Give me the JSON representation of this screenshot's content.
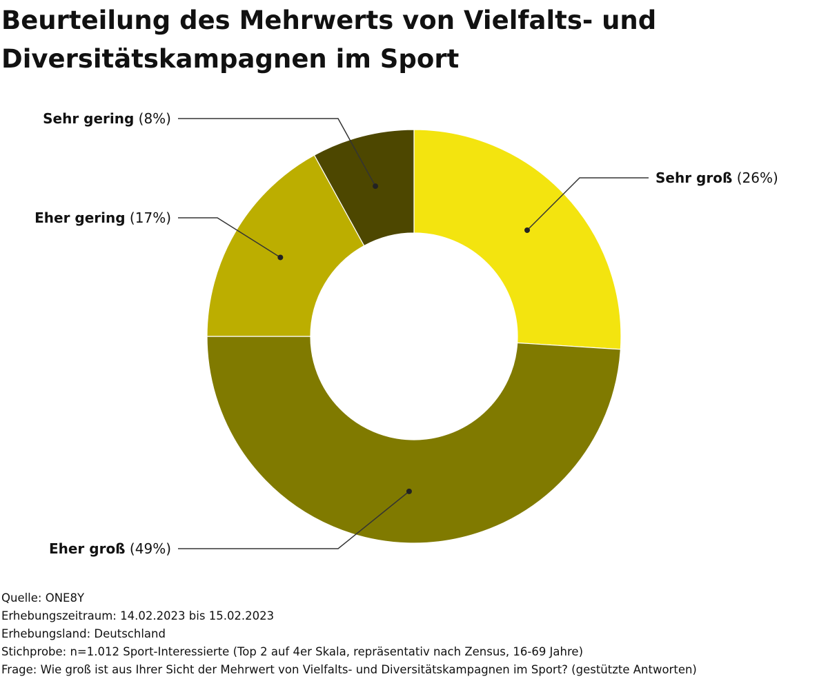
{
  "chart_data": {
    "type": "pie",
    "variant": "donut",
    "title": "Beurteilung des Mehrwerts von Vielfalts- und Diversitätskampagnen im Sport",
    "categories": [
      "Sehr groß",
      "Eher groß",
      "Eher gering",
      "Sehr gering"
    ],
    "values": [
      26,
      49,
      17,
      8
    ],
    "value_labels": [
      "(26%)",
      "(49%)",
      "(17%)",
      "(8%)"
    ],
    "unit": "%",
    "colors": [
      "#f3e40f",
      "#807a00",
      "#bcae00",
      "#4d4700"
    ]
  },
  "footer": {
    "source": "Quelle: ONE8Y",
    "period": "Erhebungszeitraum: 14.02.2023 bis 15.02.2023",
    "country": "Erhebungsland: Deutschland",
    "sample": "Stichprobe: n=1.012 Sport-Interessierte (Top 2 auf 4er Skala, repräsentativ nach Zensus, 16-69 Jahre)",
    "question": "Frage: Wie groß ist aus Ihrer Sicht der Mehrwert von Vielfalts- und Diversitätskampagnen im Sport? (gestützte Antworten)"
  }
}
